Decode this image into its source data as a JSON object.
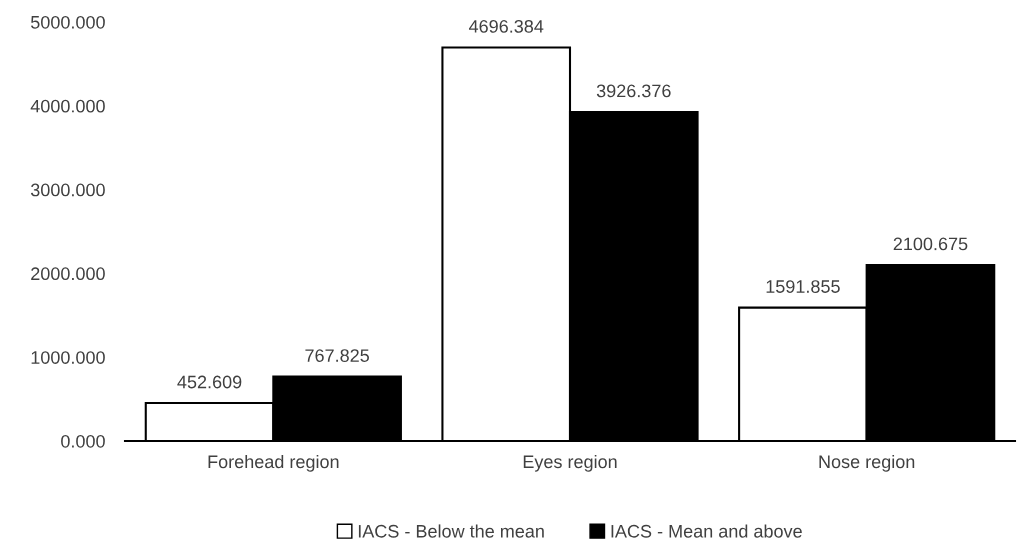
{
  "chart_data": {
    "type": "bar",
    "categories": [
      "Forehead region",
      "Eyes region",
      "Nose region"
    ],
    "series": [
      {
        "name": "IACS - Below the mean",
        "color": "#ffffff",
        "values": [
          452.609,
          4696.384,
          1591.855
        ]
      },
      {
        "name": "IACS - Mean and above",
        "color": "#000000",
        "values": [
          767.825,
          3926.376,
          2100.675
        ]
      }
    ],
    "ylim": [
      0,
      5000
    ],
    "yticks": [
      {
        "value": 0,
        "label": "0.000"
      },
      {
        "value": 1000,
        "label": "1000.000"
      },
      {
        "value": 2000,
        "label": "2000.000"
      },
      {
        "value": 3000,
        "label": "3000.000"
      },
      {
        "value": 4000,
        "label": "4000.000"
      },
      {
        "value": 5000,
        "label": "5000.000"
      }
    ],
    "data_labels": true,
    "grid": false,
    "legend": "bottom"
  }
}
